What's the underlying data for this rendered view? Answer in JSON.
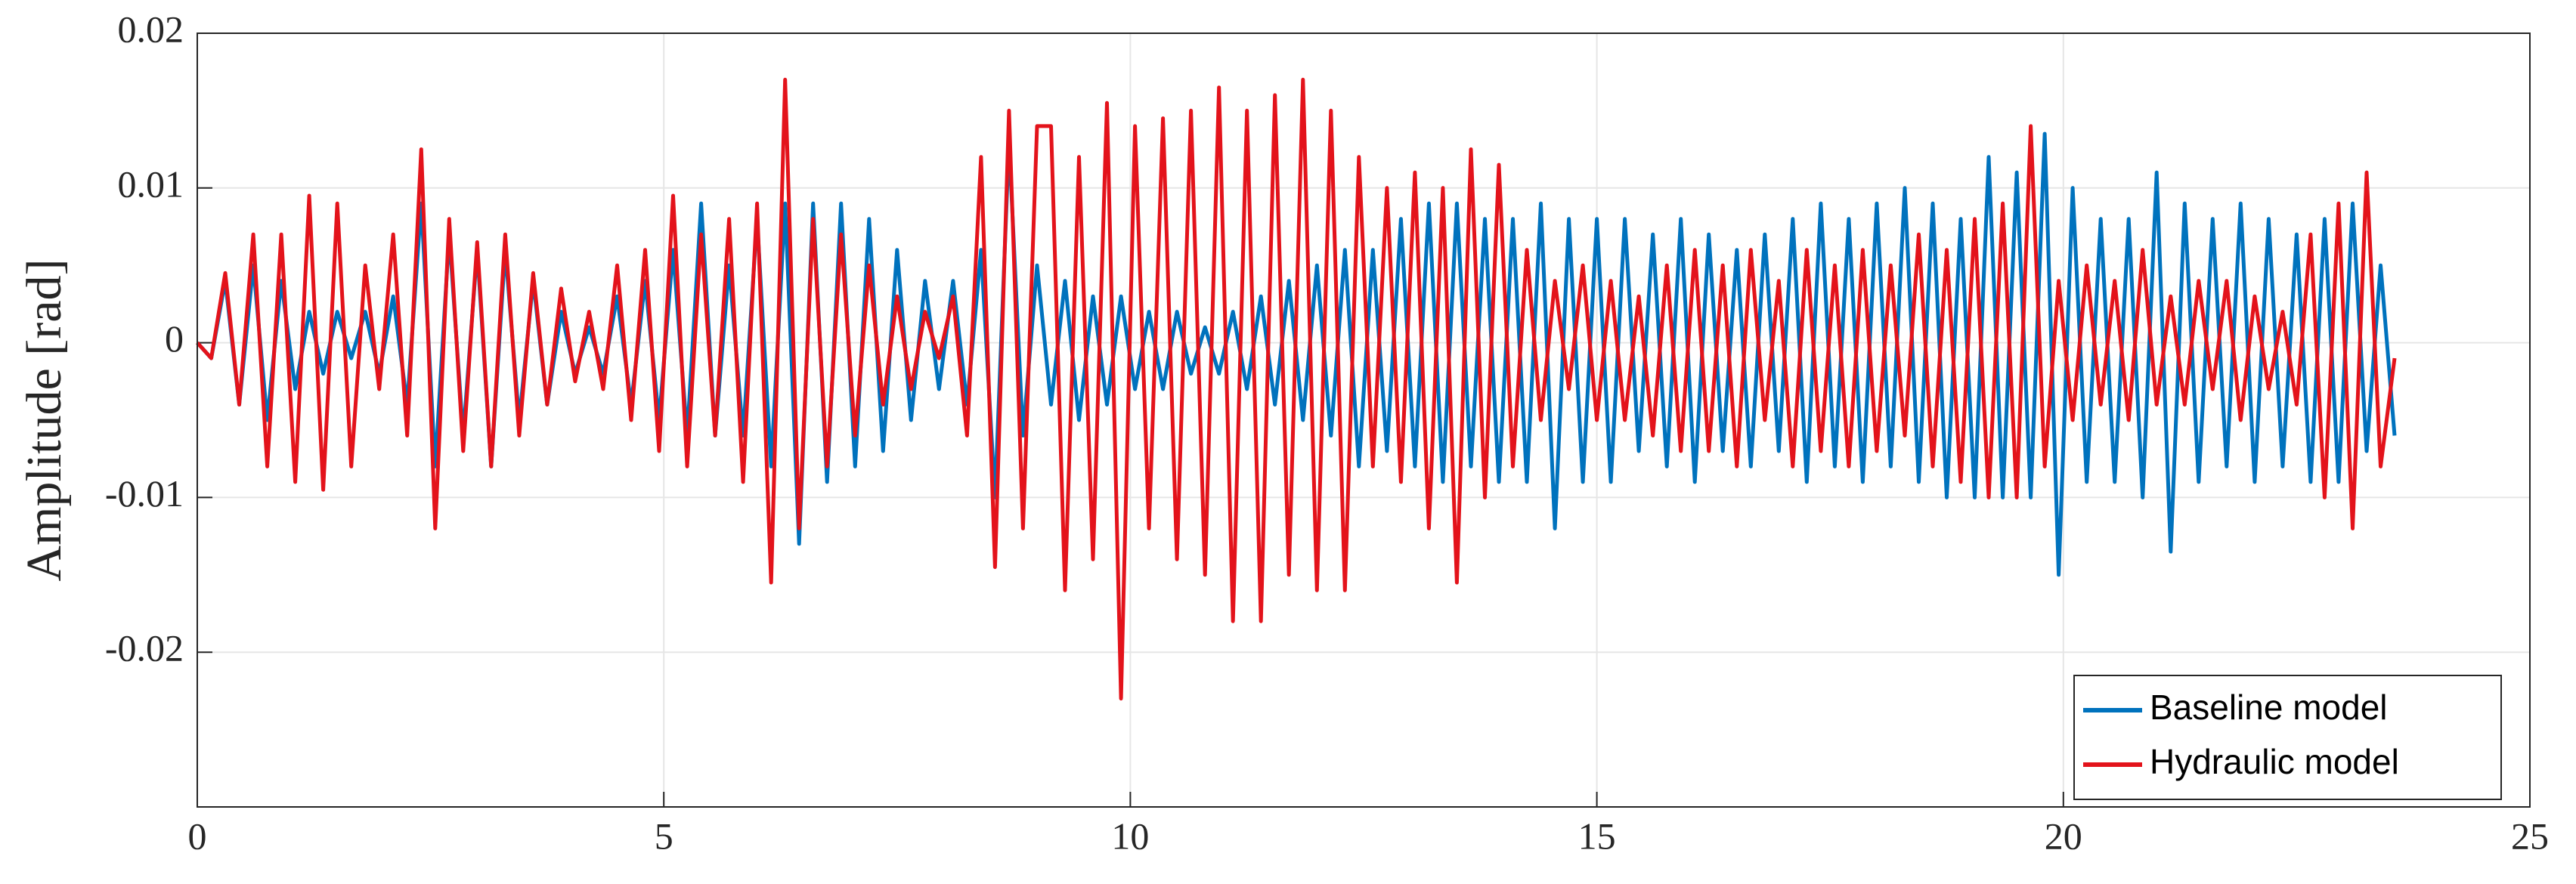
{
  "chart_data": {
    "type": "line",
    "y_label": "Amplitude [rad]",
    "xlim": [
      0,
      25
    ],
    "xticks": [
      0,
      5,
      10,
      15,
      20,
      25
    ],
    "ylim": [
      -0.03,
      0.02
    ],
    "yticks": [
      -0.02,
      -0.01,
      0,
      0.01,
      0.02
    ],
    "grid": true,
    "legend": "lower right",
    "x": [
      0,
      0.15,
      0.3,
      0.45,
      0.6,
      0.75,
      0.9,
      1.05,
      1.2,
      1.35,
      1.5,
      1.65,
      1.8,
      1.95,
      2.1,
      2.25,
      2.4,
      2.55,
      2.7,
      2.85,
      3,
      3.15,
      3.3,
      3.45,
      3.6,
      3.75,
      3.9,
      4.05,
      4.2,
      4.35,
      4.5,
      4.65,
      4.8,
      4.95,
      5.1,
      5.25,
      5.4,
      5.55,
      5.7,
      5.85,
      6,
      6.15,
      6.3,
      6.45,
      6.6,
      6.75,
      6.9,
      7.05,
      7.2,
      7.35,
      7.5,
      7.65,
      7.8,
      7.95,
      8.1,
      8.25,
      8.4,
      8.55,
      8.7,
      8.85,
      9,
      9.15,
      9.3,
      9.45,
      9.6,
      9.75,
      9.9,
      10.05,
      10.2,
      10.35,
      10.5,
      10.65,
      10.8,
      10.95,
      11.1,
      11.25,
      11.4,
      11.55,
      11.7,
      11.85,
      12,
      12.15,
      12.3,
      12.45,
      12.6,
      12.75,
      12.9,
      13.05,
      13.2,
      13.35,
      13.5,
      13.65,
      13.8,
      13.95,
      14.1,
      14.25,
      14.4,
      14.55,
      14.7,
      14.85,
      15,
      15.15,
      15.3,
      15.45,
      15.6,
      15.75,
      15.9,
      16.05,
      16.2,
      16.35,
      16.5,
      16.65,
      16.8,
      16.95,
      17.1,
      17.25,
      17.4,
      17.55,
      17.7,
      17.85,
      18,
      18.15,
      18.3,
      18.45,
      18.6,
      18.75,
      18.9,
      19.05,
      19.2,
      19.35,
      19.5,
      19.65,
      19.8,
      19.95,
      20.1,
      20.25,
      20.4,
      20.55,
      20.7,
      20.85,
      21,
      21.15,
      21.3,
      21.45,
      21.6,
      21.75,
      21.9,
      22.05,
      22.2,
      22.35,
      22.5,
      22.65,
      22.8,
      22.95,
      23.1,
      23.25,
      23.4,
      23.55
    ],
    "series": [
      {
        "name": "Baseline model",
        "color": "#0072bd",
        "values": [
          0,
          -0.001,
          0.004,
          -0.004,
          0.005,
          -0.005,
          0.004,
          -0.003,
          0.002,
          -0.002,
          0.002,
          -0.001,
          0.002,
          -0.002,
          0.003,
          -0.004,
          0.009,
          -0.008,
          0.007,
          -0.006,
          0.006,
          -0.008,
          0.006,
          -0.005,
          0.004,
          -0.004,
          0.002,
          -0.002,
          0.001,
          -0.002,
          0.003,
          -0.004,
          0.004,
          -0.005,
          0.006,
          -0.006,
          0.009,
          -0.006,
          0.005,
          -0.006,
          0.008,
          -0.008,
          0.009,
          -0.013,
          0.009,
          -0.009,
          0.009,
          -0.008,
          0.008,
          -0.007,
          0.006,
          -0.005,
          0.004,
          -0.003,
          0.004,
          -0.004,
          0.006,
          -0.01,
          0.013,
          -0.006,
          0.005,
          -0.004,
          0.004,
          -0.005,
          0.003,
          -0.004,
          0.003,
          -0.003,
          0.002,
          -0.003,
          0.002,
          -0.002,
          0.001,
          -0.002,
          0.002,
          -0.003,
          0.003,
          -0.004,
          0.004,
          -0.005,
          0.005,
          -0.006,
          0.006,
          -0.008,
          0.006,
          -0.007,
          0.008,
          -0.008,
          0.009,
          -0.009,
          0.009,
          -0.008,
          0.008,
          -0.009,
          0.008,
          -0.009,
          0.009,
          -0.012,
          0.008,
          -0.009,
          0.008,
          -0.009,
          0.008,
          -0.007,
          0.007,
          -0.008,
          0.008,
          -0.009,
          0.007,
          -0.007,
          0.006,
          -0.008,
          0.007,
          -0.007,
          0.008,
          -0.009,
          0.009,
          -0.008,
          0.008,
          -0.009,
          0.009,
          -0.008,
          0.01,
          -0.009,
          0.009,
          -0.01,
          0.008,
          -0.01,
          0.012,
          -0.01,
          0.011,
          -0.01,
          0.0135,
          -0.015,
          0.01,
          -0.009,
          0.008,
          -0.009,
          0.008,
          -0.01,
          0.011,
          -0.0135,
          0.009,
          -0.009,
          0.008,
          -0.008,
          0.009,
          -0.009,
          0.008,
          -0.008,
          0.007,
          -0.009,
          0.008,
          -0.009,
          0.009,
          -0.007,
          0.005,
          -0.006
        ]
      },
      {
        "name": "Hydraulic model",
        "color": "#e3131b",
        "values": [
          0,
          -0.001,
          0.0045,
          -0.004,
          0.007,
          -0.008,
          0.007,
          -0.009,
          0.0095,
          -0.0095,
          0.009,
          -0.008,
          0.005,
          -0.003,
          0.007,
          -0.006,
          0.0125,
          -0.012,
          0.008,
          -0.007,
          0.0065,
          -0.008,
          0.007,
          -0.006,
          0.0045,
          -0.004,
          0.0035,
          -0.0025,
          0.002,
          -0.003,
          0.005,
          -0.005,
          0.006,
          -0.007,
          0.0095,
          -0.008,
          0.007,
          -0.006,
          0.008,
          -0.009,
          0.009,
          -0.0155,
          0.017,
          -0.012,
          0.008,
          -0.008,
          0.007,
          -0.006,
          0.005,
          -0.004,
          0.003,
          -0.003,
          0.002,
          -0.001,
          0.003,
          -0.006,
          0.012,
          -0.0145,
          0.015,
          -0.012,
          0.014,
          0.014,
          -0.016,
          0.012,
          -0.014,
          0.0155,
          -0.023,
          0.014,
          -0.012,
          0.0145,
          -0.014,
          0.015,
          -0.015,
          0.0165,
          -0.018,
          0.015,
          -0.018,
          0.016,
          -0.015,
          0.017,
          -0.016,
          0.015,
          -0.016,
          0.012,
          -0.008,
          0.01,
          -0.009,
          0.011,
          -0.012,
          0.01,
          -0.0155,
          0.0125,
          -0.01,
          0.0115,
          -0.008,
          0.006,
          -0.005,
          0.004,
          -0.003,
          0.005,
          -0.005,
          0.004,
          -0.005,
          0.003,
          -0.006,
          0.005,
          -0.007,
          0.006,
          -0.007,
          0.005,
          -0.008,
          0.006,
          -0.005,
          0.004,
          -0.008,
          0.006,
          -0.007,
          0.005,
          -0.008,
          0.006,
          -0.007,
          0.005,
          -0.006,
          0.007,
          -0.008,
          0.006,
          -0.009,
          0.008,
          -0.01,
          0.009,
          -0.01,
          0.014,
          -0.008,
          0.004,
          -0.005,
          0.005,
          -0.004,
          0.004,
          -0.005,
          0.006,
          -0.004,
          0.003,
          -0.004,
          0.004,
          -0.003,
          0.004,
          -0.005,
          0.003,
          -0.003,
          0.002,
          -0.004,
          0.007,
          -0.01,
          0.009,
          -0.012,
          0.011,
          -0.008,
          -0.001
        ]
      }
    ]
  }
}
